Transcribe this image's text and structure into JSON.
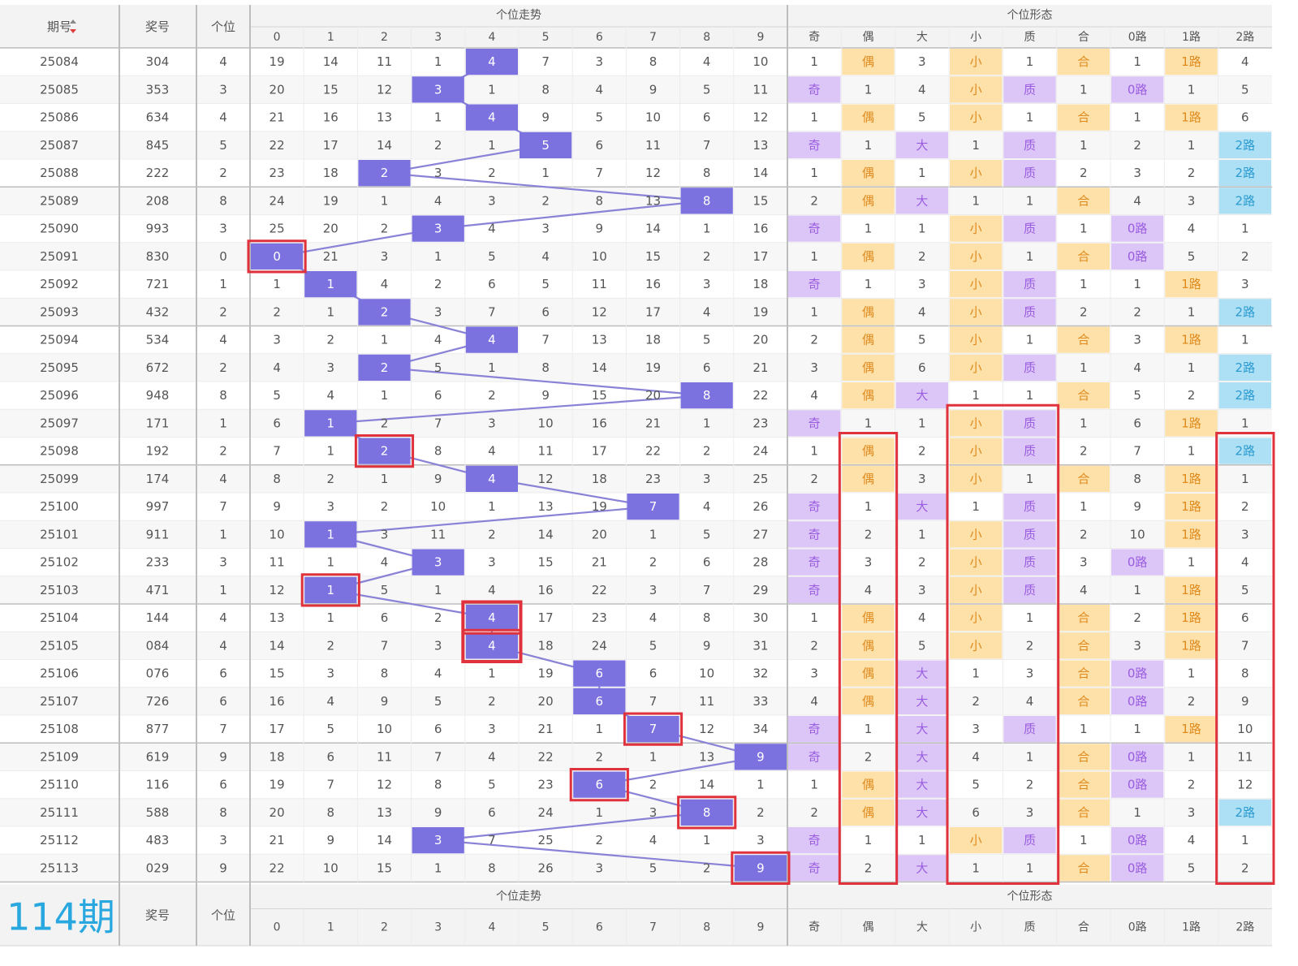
{
  "header": {
    "col_period": "期号",
    "col_prize": "奖号",
    "col_digit": "个位",
    "group_trend": "个位走势",
    "group_form": "个位形态",
    "trend_digits": [
      "0",
      "1",
      "2",
      "3",
      "4",
      "5",
      "6",
      "7",
      "8",
      "9"
    ],
    "form_labels": [
      "奇",
      "偶",
      "大",
      "小",
      "质",
      "合",
      "0路",
      "1路",
      "2路"
    ]
  },
  "footer": {
    "count_label": "114期",
    "col_prize": "奖号",
    "col_digit": "个位",
    "group_trend": "个位走势",
    "group_form": "个位形态",
    "trend_digits": [
      "0",
      "1",
      "2",
      "3",
      "4",
      "5",
      "6",
      "7",
      "8",
      "9"
    ],
    "form_labels": [
      "奇",
      "偶",
      "大",
      "小",
      "质",
      "合",
      "0路",
      "1路",
      "2路"
    ]
  },
  "colors": {
    "hit": "#7b72e0",
    "trend_line": "#8a82d6",
    "odd_prime_zero": "#dcc6f7",
    "even_small_comp_one": "#fde1a8",
    "two_road": "#ade0f4",
    "mark_box": "#e0323c",
    "count_label": "#29a8e0"
  },
  "chart_data": {
    "type": "table",
    "rows": [
      {
        "period": "25084",
        "prize": "304",
        "digit": 4,
        "trend": [
          "19",
          "14",
          "11",
          "1",
          "4",
          "7",
          "3",
          "8",
          "4",
          "10"
        ],
        "form": [
          "1",
          "偶",
          "3",
          "小",
          "1",
          "合",
          "1",
          "1路",
          "4"
        ]
      },
      {
        "period": "25085",
        "prize": "353",
        "digit": 3,
        "trend": [
          "20",
          "15",
          "12",
          "3",
          "1",
          "8",
          "4",
          "9",
          "5",
          "11"
        ],
        "form": [
          "奇",
          "1",
          "4",
          "小",
          "质",
          "1",
          "0路",
          "1",
          "5"
        ]
      },
      {
        "period": "25086",
        "prize": "634",
        "digit": 4,
        "trend": [
          "21",
          "16",
          "13",
          "1",
          "4",
          "9",
          "5",
          "10",
          "6",
          "12"
        ],
        "form": [
          "1",
          "偶",
          "5",
          "小",
          "1",
          "合",
          "1",
          "1路",
          "6"
        ]
      },
      {
        "period": "25087",
        "prize": "845",
        "digit": 5,
        "trend": [
          "22",
          "17",
          "14",
          "2",
          "1",
          "5",
          "6",
          "11",
          "7",
          "13"
        ],
        "form": [
          "奇",
          "1",
          "大",
          "1",
          "质",
          "1",
          "2",
          "1",
          "2路"
        ]
      },
      {
        "period": "25088",
        "prize": "222",
        "digit": 2,
        "trend": [
          "23",
          "18",
          "2",
          "3",
          "2",
          "1",
          "7",
          "12",
          "8",
          "14"
        ],
        "form": [
          "1",
          "偶",
          "1",
          "小",
          "质",
          "2",
          "3",
          "2",
          "2路"
        ]
      },
      {
        "period": "25089",
        "prize": "208",
        "digit": 8,
        "trend": [
          "24",
          "19",
          "1",
          "4",
          "3",
          "2",
          "8",
          "13",
          "8",
          "15"
        ],
        "form": [
          "2",
          "偶",
          "大",
          "1",
          "1",
          "合",
          "4",
          "3",
          "2路"
        ]
      },
      {
        "period": "25090",
        "prize": "993",
        "digit": 3,
        "trend": [
          "25",
          "20",
          "2",
          "3",
          "4",
          "3",
          "9",
          "14",
          "1",
          "16"
        ],
        "form": [
          "奇",
          "1",
          "1",
          "小",
          "质",
          "1",
          "0路",
          "4",
          "1"
        ]
      },
      {
        "period": "25091",
        "prize": "830",
        "digit": 0,
        "trend": [
          "0",
          "21",
          "3",
          "1",
          "5",
          "4",
          "10",
          "15",
          "2",
          "17"
        ],
        "form": [
          "1",
          "偶",
          "2",
          "小",
          "1",
          "合",
          "0路",
          "5",
          "2"
        ]
      },
      {
        "period": "25092",
        "prize": "721",
        "digit": 1,
        "trend": [
          "1",
          "1",
          "4",
          "2",
          "6",
          "5",
          "11",
          "16",
          "3",
          "18"
        ],
        "form": [
          "奇",
          "1",
          "3",
          "小",
          "质",
          "1",
          "1",
          "1路",
          "3"
        ]
      },
      {
        "period": "25093",
        "prize": "432",
        "digit": 2,
        "trend": [
          "2",
          "1",
          "2",
          "3",
          "7",
          "6",
          "12",
          "17",
          "4",
          "19"
        ],
        "form": [
          "1",
          "偶",
          "4",
          "小",
          "质",
          "2",
          "2",
          "1",
          "2路"
        ]
      },
      {
        "period": "25094",
        "prize": "534",
        "digit": 4,
        "trend": [
          "3",
          "2",
          "1",
          "4",
          "4",
          "7",
          "13",
          "18",
          "5",
          "20"
        ],
        "form": [
          "2",
          "偶",
          "5",
          "小",
          "1",
          "合",
          "3",
          "1路",
          "1"
        ]
      },
      {
        "period": "25095",
        "prize": "672",
        "digit": 2,
        "trend": [
          "4",
          "3",
          "2",
          "5",
          "1",
          "8",
          "14",
          "19",
          "6",
          "21"
        ],
        "form": [
          "3",
          "偶",
          "6",
          "小",
          "质",
          "1",
          "4",
          "1",
          "2路"
        ]
      },
      {
        "period": "25096",
        "prize": "948",
        "digit": 8,
        "trend": [
          "5",
          "4",
          "1",
          "6",
          "2",
          "9",
          "15",
          "20",
          "8",
          "22"
        ],
        "form": [
          "4",
          "偶",
          "大",
          "1",
          "1",
          "合",
          "5",
          "2",
          "2路"
        ]
      },
      {
        "period": "25097",
        "prize": "171",
        "digit": 1,
        "trend": [
          "6",
          "1",
          "2",
          "7",
          "3",
          "10",
          "16",
          "21",
          "1",
          "23"
        ],
        "form": [
          "奇",
          "1",
          "1",
          "小",
          "质",
          "1",
          "6",
          "1路",
          "1"
        ]
      },
      {
        "period": "25098",
        "prize": "192",
        "digit": 2,
        "trend": [
          "7",
          "1",
          "2",
          "8",
          "4",
          "11",
          "17",
          "22",
          "2",
          "24"
        ],
        "form": [
          "1",
          "偶",
          "2",
          "小",
          "质",
          "2",
          "7",
          "1",
          "2路"
        ]
      },
      {
        "period": "25099",
        "prize": "174",
        "digit": 4,
        "trend": [
          "8",
          "2",
          "1",
          "9",
          "4",
          "12",
          "18",
          "23",
          "3",
          "25"
        ],
        "form": [
          "2",
          "偶",
          "3",
          "小",
          "1",
          "合",
          "8",
          "1路",
          "1"
        ]
      },
      {
        "period": "25100",
        "prize": "997",
        "digit": 7,
        "trend": [
          "9",
          "3",
          "2",
          "10",
          "1",
          "13",
          "19",
          "7",
          "4",
          "26"
        ],
        "form": [
          "奇",
          "1",
          "大",
          "1",
          "质",
          "1",
          "9",
          "1路",
          "2"
        ]
      },
      {
        "period": "25101",
        "prize": "911",
        "digit": 1,
        "trend": [
          "10",
          "1",
          "3",
          "11",
          "2",
          "14",
          "20",
          "1",
          "5",
          "27"
        ],
        "form": [
          "奇",
          "2",
          "1",
          "小",
          "质",
          "2",
          "10",
          "1路",
          "3"
        ]
      },
      {
        "period": "25102",
        "prize": "233",
        "digit": 3,
        "trend": [
          "11",
          "1",
          "4",
          "3",
          "3",
          "15",
          "21",
          "2",
          "6",
          "28"
        ],
        "form": [
          "奇",
          "3",
          "2",
          "小",
          "质",
          "3",
          "0路",
          "1",
          "4"
        ]
      },
      {
        "period": "25103",
        "prize": "471",
        "digit": 1,
        "trend": [
          "12",
          "1",
          "5",
          "1",
          "4",
          "16",
          "22",
          "3",
          "7",
          "29"
        ],
        "form": [
          "奇",
          "4",
          "3",
          "小",
          "质",
          "4",
          "1",
          "1路",
          "5"
        ]
      },
      {
        "period": "25104",
        "prize": "144",
        "digit": 4,
        "trend": [
          "13",
          "1",
          "6",
          "2",
          "4",
          "17",
          "23",
          "4",
          "8",
          "30"
        ],
        "form": [
          "1",
          "偶",
          "4",
          "小",
          "1",
          "合",
          "2",
          "1路",
          "6"
        ]
      },
      {
        "period": "25105",
        "prize": "084",
        "digit": 4,
        "trend": [
          "14",
          "2",
          "7",
          "3",
          "4",
          "18",
          "24",
          "5",
          "9",
          "31"
        ],
        "form": [
          "2",
          "偶",
          "5",
          "小",
          "2",
          "合",
          "3",
          "1路",
          "7"
        ]
      },
      {
        "period": "25106",
        "prize": "076",
        "digit": 6,
        "trend": [
          "15",
          "3",
          "8",
          "4",
          "1",
          "19",
          "6",
          "6",
          "10",
          "32"
        ],
        "form": [
          "3",
          "偶",
          "大",
          "1",
          "3",
          "合",
          "0路",
          "1",
          "8"
        ]
      },
      {
        "period": "25107",
        "prize": "726",
        "digit": 6,
        "trend": [
          "16",
          "4",
          "9",
          "5",
          "2",
          "20",
          "6",
          "7",
          "11",
          "33"
        ],
        "form": [
          "4",
          "偶",
          "大",
          "2",
          "4",
          "合",
          "0路",
          "2",
          "9"
        ]
      },
      {
        "period": "25108",
        "prize": "877",
        "digit": 7,
        "trend": [
          "17",
          "5",
          "10",
          "6",
          "3",
          "21",
          "1",
          "7",
          "12",
          "34"
        ],
        "form": [
          "奇",
          "1",
          "大",
          "3",
          "质",
          "1",
          "1",
          "1路",
          "10"
        ]
      },
      {
        "period": "25109",
        "prize": "619",
        "digit": 9,
        "trend": [
          "18",
          "6",
          "11",
          "7",
          "4",
          "22",
          "2",
          "1",
          "13",
          "9"
        ],
        "form": [
          "奇",
          "2",
          "大",
          "4",
          "1",
          "合",
          "0路",
          "1",
          "11"
        ]
      },
      {
        "period": "25110",
        "prize": "116",
        "digit": 6,
        "trend": [
          "19",
          "7",
          "12",
          "8",
          "5",
          "23",
          "6",
          "2",
          "14",
          "1"
        ],
        "form": [
          "1",
          "偶",
          "大",
          "5",
          "2",
          "合",
          "0路",
          "2",
          "12"
        ]
      },
      {
        "period": "25111",
        "prize": "588",
        "digit": 8,
        "trend": [
          "20",
          "8",
          "13",
          "9",
          "6",
          "24",
          "1",
          "3",
          "8",
          "2"
        ],
        "form": [
          "2",
          "偶",
          "大",
          "6",
          "3",
          "合",
          "1",
          "3",
          "2路"
        ]
      },
      {
        "period": "25112",
        "prize": "483",
        "digit": 3,
        "trend": [
          "21",
          "9",
          "14",
          "3",
          "7",
          "25",
          "2",
          "4",
          "1",
          "3"
        ],
        "form": [
          "奇",
          "1",
          "1",
          "小",
          "质",
          "1",
          "0路",
          "4",
          "1"
        ]
      },
      {
        "period": "25113",
        "prize": "029",
        "digit": 9,
        "trend": [
          "22",
          "10",
          "15",
          "1",
          "8",
          "26",
          "3",
          "5",
          "2",
          "9"
        ],
        "form": [
          "奇",
          "2",
          "大",
          "1",
          "1",
          "合",
          "0路",
          "5",
          "2"
        ]
      }
    ]
  }
}
